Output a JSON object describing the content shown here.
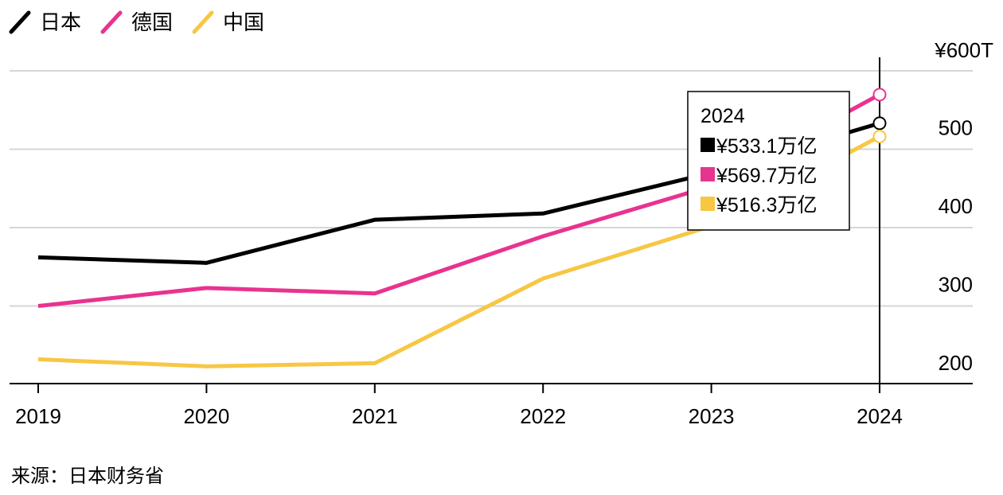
{
  "legend": [
    {
      "label": "日本",
      "color": "#000000"
    },
    {
      "label": "德国",
      "color": "#e8338f"
    },
    {
      "label": "中国",
      "color": "#f7c744"
    }
  ],
  "y_axis": {
    "top_label": "¥600T",
    "tick_labels": [
      "500",
      "400",
      "300",
      "200"
    ]
  },
  "tooltip": {
    "year": "2024",
    "rows": [
      {
        "text": "¥533.1万亿",
        "color": "#000000"
      },
      {
        "text": "¥569.7万亿",
        "color": "#e8338f"
      },
      {
        "text": "¥516.3万亿",
        "color": "#f7c744"
      }
    ]
  },
  "source": "来源：日本财务省",
  "chart_data": {
    "type": "line",
    "title": "",
    "xlabel": "",
    "ylabel": "",
    "categories": [
      "2019",
      "2020",
      "2021",
      "2022",
      "2023",
      "2024"
    ],
    "ylim": [
      180,
      620
    ],
    "y_ticks": [
      200,
      300,
      400,
      500,
      600
    ],
    "grid": true,
    "legend_position": "top-left",
    "series": [
      {
        "name": "日本",
        "color": "#000000",
        "values": [
          362,
          355,
          410,
          418,
          470,
          533.1
        ]
      },
      {
        "name": "德国",
        "color": "#e8338f",
        "values": [
          300,
          323,
          316,
          389,
          453,
          569.7
        ]
      },
      {
        "name": "中国",
        "color": "#f7c744",
        "values": [
          232,
          223,
          227,
          335,
          402,
          516.3
        ]
      }
    ],
    "highlight": {
      "category": "2024"
    }
  }
}
